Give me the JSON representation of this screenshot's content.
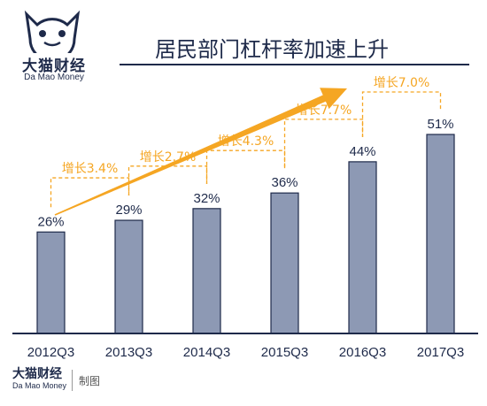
{
  "brand": {
    "name_cn": "大猫财经",
    "name_en": "Da Mao Money"
  },
  "footer": {
    "note": "制图"
  },
  "colors": {
    "bar": "#8d99b4",
    "bar_stroke": "#1e2a4a",
    "growth": "#f5a623",
    "text": "#1e2a4a"
  },
  "chart_data": {
    "type": "bar",
    "title": "居民部门杠杆率加速上升",
    "categories": [
      "2012Q3",
      "2013Q3",
      "2014Q3",
      "2015Q3",
      "2016Q3",
      "2017Q3"
    ],
    "values": [
      26,
      29,
      32,
      36,
      44,
      51
    ],
    "value_labels": [
      "26%",
      "29%",
      "32%",
      "36%",
      "44%",
      "51%"
    ],
    "growth_labels": [
      "增长3.4%",
      "增长2.7%",
      "增长4.3%",
      "增长7.7%",
      "增长7.0%"
    ],
    "ylim": [
      0,
      51
    ],
    "grid": false,
    "trend_arrow": true
  }
}
